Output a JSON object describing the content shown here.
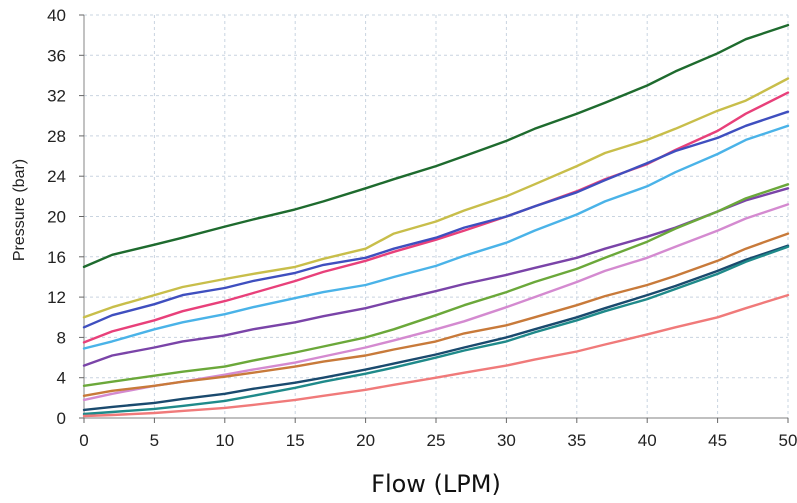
{
  "chart_data": {
    "type": "line",
    "title": "",
    "xlabel": "Flow (LPM)",
    "ylabel": "Pressure (bar)",
    "xlim": [
      0,
      50
    ],
    "ylim": [
      0,
      40
    ],
    "x_ticks": [
      0,
      5,
      10,
      15,
      20,
      25,
      30,
      35,
      40,
      45,
      50
    ],
    "y_ticks": [
      0,
      4,
      8,
      12,
      16,
      20,
      24,
      28,
      32,
      36,
      40
    ],
    "grid": true,
    "legend": "none",
    "x": [
      0,
      2,
      5,
      7,
      10,
      12,
      15,
      17,
      20,
      22,
      25,
      27,
      30,
      32,
      35,
      37,
      40,
      42,
      45,
      47,
      50
    ],
    "series": [
      {
        "color": "#1e6b2e",
        "values": [
          15,
          16.2,
          17.2,
          17.9,
          19,
          19.7,
          20.7,
          21.5,
          22.8,
          23.7,
          25,
          26,
          27.5,
          28.7,
          30.2,
          31.3,
          33,
          34.4,
          36.2,
          37.6,
          39
        ]
      },
      {
        "color": "#c8be4a",
        "values": [
          10,
          11,
          12.2,
          13,
          13.8,
          14.3,
          15,
          15.8,
          16.8,
          18.3,
          19.5,
          20.6,
          22,
          23.2,
          25,
          26.3,
          27.6,
          28.7,
          30.5,
          31.5,
          33.7
        ]
      },
      {
        "color": "#e8407a",
        "values": [
          7.5,
          8.6,
          9.7,
          10.6,
          11.6,
          12.4,
          13.6,
          14.5,
          15.6,
          16.5,
          17.7,
          18.6,
          20,
          21,
          22.5,
          23.7,
          25.2,
          26.6,
          28.5,
          30.2,
          32.3
        ]
      },
      {
        "color": "#3f4fbf",
        "values": [
          9,
          10.2,
          11.3,
          12.2,
          12.9,
          13.6,
          14.4,
          15.2,
          15.9,
          16.8,
          17.9,
          18.9,
          20,
          21,
          22.4,
          23.6,
          25.3,
          26.5,
          27.8,
          29,
          30.4
        ]
      },
      {
        "color": "#4ab3e8",
        "values": [
          6.9,
          7.6,
          8.8,
          9.5,
          10.3,
          11,
          11.9,
          12.5,
          13.2,
          14,
          15.1,
          16.1,
          17.4,
          18.6,
          20.2,
          21.5,
          23,
          24.4,
          26.2,
          27.6,
          29
        ]
      },
      {
        "color": "#7a44a8",
        "values": [
          5.2,
          6.2,
          7,
          7.6,
          8.2,
          8.8,
          9.5,
          10.1,
          10.9,
          11.6,
          12.6,
          13.3,
          14.2,
          14.9,
          15.9,
          16.8,
          18,
          18.9,
          20.5,
          21.6,
          22.8
        ]
      },
      {
        "color": "#6ba83a",
        "values": [
          3.2,
          3.6,
          4.2,
          4.6,
          5.1,
          5.7,
          6.5,
          7.1,
          8,
          8.8,
          10.2,
          11.2,
          12.5,
          13.5,
          14.8,
          15.9,
          17.5,
          18.8,
          20.5,
          21.8,
          23.2
        ]
      },
      {
        "color": "#d48ad0",
        "values": [
          1.8,
          2.4,
          3.2,
          3.6,
          4.3,
          4.8,
          5.5,
          6.1,
          7,
          7.7,
          8.8,
          9.6,
          11,
          12,
          13.5,
          14.6,
          15.9,
          17,
          18.6,
          19.8,
          21.2
        ]
      },
      {
        "color": "#c87a3a",
        "values": [
          2.2,
          2.7,
          3.2,
          3.6,
          4.1,
          4.5,
          5.1,
          5.6,
          6.2,
          6.8,
          7.6,
          8.4,
          9.2,
          10,
          11.2,
          12.1,
          13.2,
          14.1,
          15.6,
          16.8,
          18.3
        ]
      },
      {
        "color": "#1a4a6e",
        "values": [
          0.8,
          1.1,
          1.5,
          1.9,
          2.4,
          2.9,
          3.5,
          4,
          4.8,
          5.4,
          6.3,
          7,
          8,
          8.8,
          10,
          10.9,
          12.2,
          13.1,
          14.6,
          15.7,
          17.1
        ]
      },
      {
        "color": "#1f8a8a",
        "values": [
          0.4,
          0.6,
          0.9,
          1.2,
          1.7,
          2.2,
          3,
          3.6,
          4.4,
          5,
          6,
          6.7,
          7.6,
          8.5,
          9.7,
          10.6,
          11.8,
          12.8,
          14.3,
          15.5,
          17
        ]
      },
      {
        "color": "#f07a7a",
        "values": [
          0.2,
          0.3,
          0.5,
          0.7,
          1,
          1.3,
          1.8,
          2.2,
          2.8,
          3.3,
          4,
          4.5,
          5.2,
          5.8,
          6.6,
          7.3,
          8.3,
          9,
          10,
          10.9,
          12.2
        ]
      }
    ]
  }
}
